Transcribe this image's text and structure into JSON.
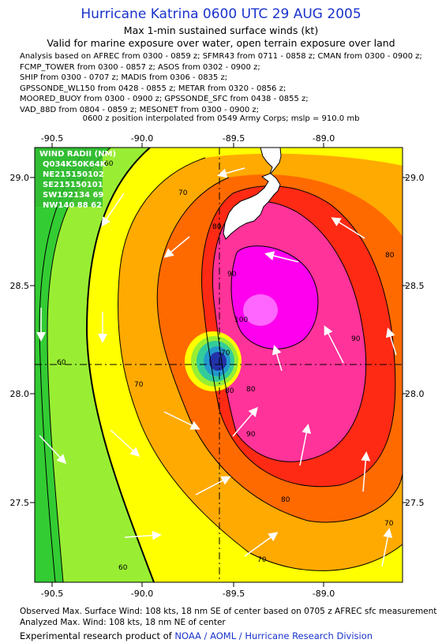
{
  "header": {
    "title": "Hurricane Katrina 0600 UTC 29 AUG 2005",
    "subtitle": "Max 1-min sustained surface winds (kt)",
    "validity": "Valid for marine exposure over water, open terrain exposure over land",
    "sources": [
      "Analysis based on  AFREC from 0300 - 0859 z;  SFMR43 from 0711 - 0858 z;  CMAN from 0300 - 0900 z;",
      "FCMP_TOWER from 0300 - 0857 z;  ASOS from 0302 - 0900 z;",
      "SHIP from 0300 - 0707 z;  MADIS from 0306 - 0835 z;",
      "GPSSONDE_WL150 from 0428 - 0855 z;  METAR from 0320 - 0856 z;",
      "MOORED_BUOY from 0300 - 0900 z;  GPSSONDE_SFC from 0438 - 0855 z;",
      "VAD_88D from 0804 - 0859 z;  MESONET from 0300 - 0900 z;"
    ],
    "position_note": "0600 z position interpolated from 0549 Army Corps; mslp = 910.0 mb"
  },
  "map": {
    "lon_ticks": [
      "-90.5",
      "-90.0",
      "-89.5",
      "-89.0"
    ],
    "lat_ticks": [
      "29.0",
      "28.5",
      "28.0",
      "27.5"
    ],
    "wind_radii": {
      "title": "WIND RADII (NM)",
      "rows": [
        "Q034K50K64K",
        "NE215150102",
        "SE215150101",
        "SW192134 69",
        "NW140 88 62"
      ]
    },
    "contour_labels": [
      "60",
      "60",
      "60",
      "70",
      "70",
      "70",
      "70",
      "80",
      "80",
      "80",
      "80",
      "90",
      "90",
      "90",
      "100",
      "70",
      "80"
    ],
    "colors": {
      "green": "#33cc33",
      "yellow_green": "#99ee33",
      "yellow": "#ffff00",
      "orange": "#ffaa00",
      "dark_orange": "#ff6a00",
      "red": "#ff2a14",
      "pink": "#ff3399",
      "magenta": "#ff00ee",
      "core": "#2233aa"
    }
  },
  "footer": {
    "observed": "Observed Max. Surface Wind: 108 kts, 18 nm SE of center based on 0705 z AFREC sfc measurement",
    "analyzed": "Analyzed Max. Wind: 108 kts, 18 nm NE of center",
    "credit_prefix": "Experimental research product of ",
    "credit_org": "NOAA / AOML / Hurricane Research Division"
  }
}
